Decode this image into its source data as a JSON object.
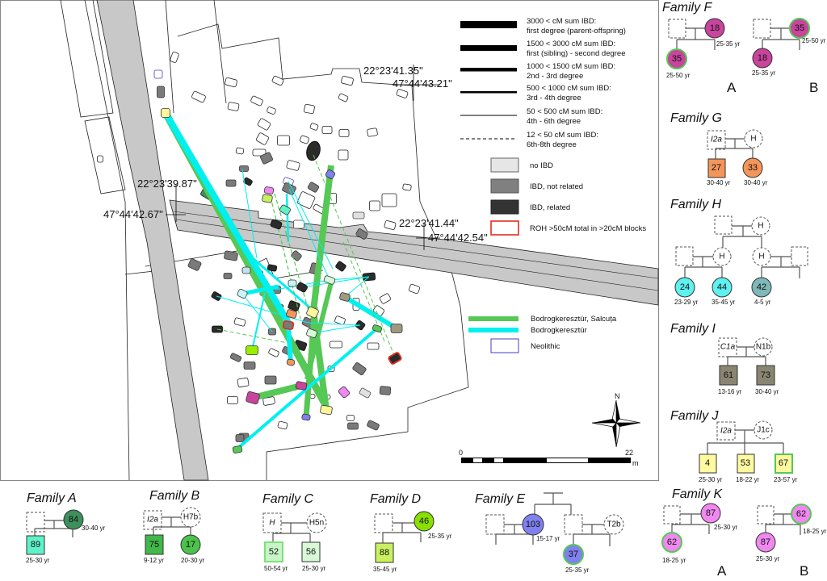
{
  "map": {
    "coordinates": [
      {
        "lon": "22°23'41.35\"",
        "lat": "47°44'43.21\""
      },
      {
        "lon": "22°23'39.87\"",
        "lat": "47°44'42.67\""
      },
      {
        "lon": "22°23'41.44\"",
        "lat": "47°44'42.54\""
      }
    ],
    "compass_label": "N",
    "scale": {
      "start": "0",
      "end": "22",
      "unit": "m"
    },
    "colors": {
      "road": "#c8c8c8",
      "bodrogkeresztur_salcuta": "#55c855",
      "bodrogkeresztur": "#00f0f0",
      "neolithic": "#4040c0",
      "roh": "#e03020"
    }
  },
  "legend": {
    "ibd_lines": [
      {
        "line1": "3000 < cM sum IBD:",
        "line2": "first degree (parent-offspring)"
      },
      {
        "line1": "1500 < 3000 cM sum IBD:",
        "line2": "first (sibling) - second degree"
      },
      {
        "line1": "1000 < 1500 cM sum IBD:",
        "line2": "2nd - 3rd degree"
      },
      {
        "line1": "500 < 1000 cM sum IBD:",
        "line2": "3rd - 4th degree"
      },
      {
        "line1": "50 < 500 cM sum IBD:",
        "line2": "4th - 6th degree"
      },
      {
        "line1": "12 < 50 cM sum IBD:",
        "line2": "6th-8th degree"
      }
    ],
    "boxes": [
      {
        "label": "no IBD",
        "color": "#e6e6e6"
      },
      {
        "label": "IBD, not related",
        "color": "#808080"
      },
      {
        "label": "IBD, related",
        "color": "#333333"
      },
      {
        "label": "ROH >50cM total in >20cM blocks",
        "color": "#e03020"
      }
    ],
    "cultures": [
      {
        "label": "Bodrogkeresztúr, Salcuța",
        "color": "#55c855"
      },
      {
        "label": "Bodrogkeresztúr",
        "color": "#00f0f0"
      },
      {
        "label": "Neolithic",
        "color": "#4040c0"
      }
    ]
  },
  "families": {
    "A": {
      "title": "Family A",
      "mother": {
        "id": "84",
        "age": "30-40 yr",
        "color": "#3d8f5c"
      },
      "child": {
        "id": "89",
        "age": "25-30 yr",
        "color": "#5ff2c8"
      }
    },
    "B": {
      "title": "Family B",
      "father_hap": "I2a",
      "mother_hap": "H7b",
      "children": [
        {
          "id": "75",
          "age": "9-12 yr",
          "color": "#40b84a"
        },
        {
          "id": "17",
          "age": "20-30 yr",
          "color": "#4cc24a"
        }
      ]
    },
    "C": {
      "title": "Family C",
      "father_hap": "H",
      "mother_hap": "H5n",
      "children": [
        {
          "id": "52",
          "age": "50-54 yr",
          "color": "#c9f5c6"
        },
        {
          "id": "56",
          "age": "25-30 yr",
          "color": "#d8f8d8"
        }
      ]
    },
    "D": {
      "title": "Family D",
      "mother": {
        "id": "46",
        "age": "25-35 yr",
        "color": "#88e000"
      },
      "child": {
        "id": "88",
        "age": "35-45 yr",
        "color": "#c8f060"
      }
    },
    "E": {
      "title": "Family E",
      "mother": {
        "id": "103",
        "age": "15-17 yr",
        "color": "#8080ee"
      },
      "mother_hap": "T2b",
      "child": {
        "id": "37",
        "age": "25-35 yr",
        "color": "#8080ee"
      }
    },
    "F": {
      "title": "Family F",
      "variants": [
        {
          "label": "A",
          "parent": {
            "id": "18",
            "age": "25-35 yr"
          },
          "child": {
            "id": "35",
            "age": "25-50 yr"
          }
        },
        {
          "label": "B",
          "parent": {
            "id": "35",
            "age": "25-50 yr"
          },
          "child": {
            "id": "18",
            "age": "25-35 yr"
          }
        }
      ],
      "color": "#c8449d"
    },
    "G": {
      "title": "Family G",
      "father_hap": "I2a",
      "mother_hap": "H",
      "children": [
        {
          "id": "27",
          "age": "30-40 yr",
          "color": "#f4955a"
        },
        {
          "id": "33",
          "age": "30-40 yr",
          "color": "#f4955a"
        }
      ]
    },
    "H": {
      "title": "Family H",
      "grandmother_hap": "H",
      "left_mother_hap": "H",
      "right_mother_hap": "H",
      "children": [
        {
          "id": "24",
          "age": "23-29 yr",
          "color": "#5ff0f0"
        },
        {
          "id": "44",
          "age": "35-45 yr",
          "color": "#5ff0f0"
        },
        {
          "id": "42",
          "age": "4-5 yr",
          "color": "#7fb8b8"
        }
      ]
    },
    "I": {
      "title": "Family I",
      "father_hap": "C1a",
      "mother_hap": "N1b",
      "children": [
        {
          "id": "61",
          "age": "13-16 yr",
          "color": "#8a8572"
        },
        {
          "id": "73",
          "age": "30-40 yr",
          "color": "#8a8572"
        }
      ]
    },
    "J": {
      "title": "Family J",
      "father_hap": "I2a",
      "mother_hap": "J1c",
      "children": [
        {
          "id": "4",
          "age": "25-30 yr",
          "color": "#fff9a0"
        },
        {
          "id": "53",
          "age": "18-22 yr",
          "color": "#fff9a0"
        },
        {
          "id": "67",
          "age": "23-57 yr",
          "color": "#fff9a0"
        }
      ]
    },
    "K": {
      "title": "Family K",
      "variants": [
        {
          "label": "A",
          "parent": {
            "id": "87",
            "age": "25-30 yr"
          },
          "child": {
            "id": "62",
            "age": "18-25 yr"
          }
        },
        {
          "label": "B",
          "parent": {
            "id": "62",
            "age": "18-25 yr"
          },
          "child": {
            "id": "87",
            "age": "25-30 yr"
          }
        }
      ],
      "color": "#f088f0"
    }
  }
}
